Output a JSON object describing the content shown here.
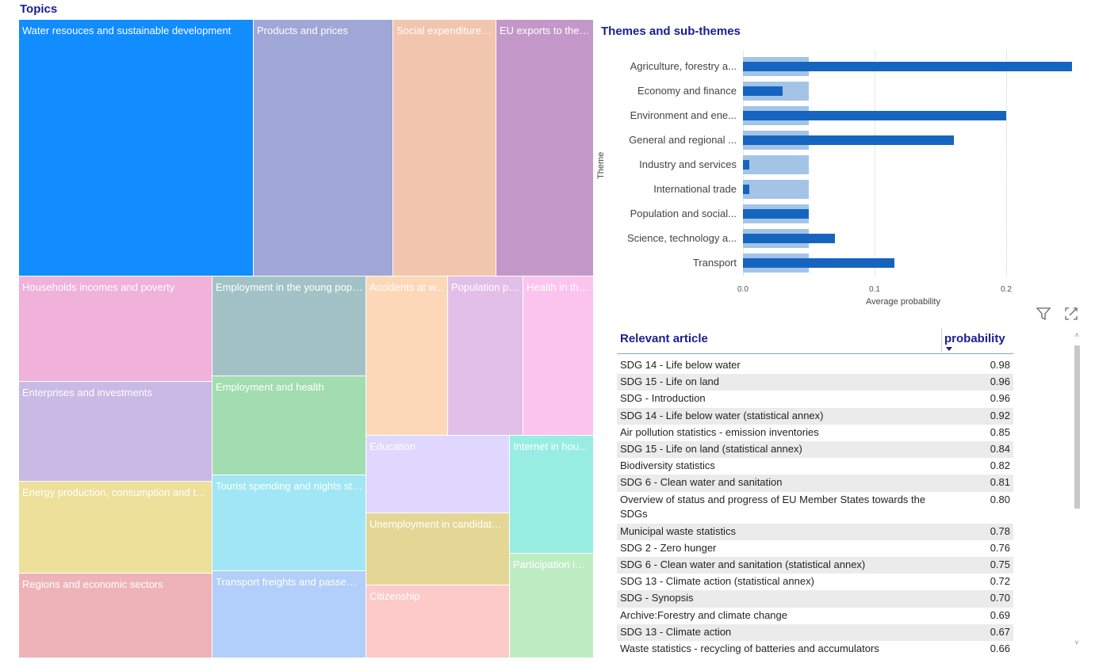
{
  "treemap": {
    "title": "Topics",
    "tiles": [
      {
        "label": "Water resouces and sustainable development",
        "color": "#118dff"
      },
      {
        "label": "Products and prices",
        "color": "#a0a7d7"
      },
      {
        "label": "Social expenditure ...",
        "color": "#f2c5ae"
      },
      {
        "label": "EU exports to the ...",
        "color": "#c398c8"
      },
      {
        "label": "Households incomes and poverty",
        "color": "#f0b2da"
      },
      {
        "label": "Employment in the young popu...",
        "color": "#a3c2c6"
      },
      {
        "label": "Accidents at w...",
        "color": "#fdd8b8"
      },
      {
        "label": "Population pr...",
        "color": "#e2bfe9"
      },
      {
        "label": "Health in the...",
        "color": "#fbc4ee"
      },
      {
        "label": "Enterprises and investments",
        "color": "#c8b9e5"
      },
      {
        "label": "Employment and health",
        "color": "#a2dcb1"
      },
      {
        "label": "Education",
        "color": "#dfd7fd"
      },
      {
        "label": "Internet in hou...",
        "color": "#98ede2"
      },
      {
        "label": "Energy production, consumption and th...",
        "color": "#ede09b"
      },
      {
        "label": "Tourist spending and nights stay",
        "color": "#a0e6f5"
      },
      {
        "label": "Unemployment in candidate ...",
        "color": "#e4d796"
      },
      {
        "label": "Participation in ...",
        "color": "#bfedc3"
      },
      {
        "label": "Regions and economic sectors",
        "color": "#eeb3b8"
      },
      {
        "label": "Transport freights and passeng...",
        "color": "#b2cefa"
      },
      {
        "label": "Citizenship",
        "color": "#fdc9c9"
      }
    ]
  },
  "themes": {
    "title": "Themes and sub-themes",
    "y_axis_label": "Theme",
    "x_axis_label": "Average probability"
  },
  "chart_data": {
    "type": "bar",
    "orientation": "horizontal",
    "title": "Themes and sub-themes",
    "ylabel": "Theme",
    "xlabel": "Average probability",
    "xlim": [
      0,
      0.25
    ],
    "x_ticks": [
      "0.0",
      "0.1",
      "0.2"
    ],
    "categories": [
      "Agriculture, forestry a...",
      "Economy and finance",
      "Environment and ene...",
      "General and regional ...",
      "Industry and services",
      "International trade",
      "Population and social...",
      "Science, technology a...",
      "Transport"
    ],
    "series": [
      {
        "values": [
          0.05,
          0.05,
          0.05,
          0.05,
          0.05,
          0.05,
          0.05,
          0.05,
          0.05
        ],
        "color": "#a3c4e6"
      },
      {
        "values": [
          0.25,
          0.03,
          0.2,
          0.16,
          0.005,
          0.005,
          0.05,
          0.07,
          0.115
        ],
        "color": "#1565c0"
      }
    ],
    "grid": true
  },
  "table": {
    "header_article": "Relevant article",
    "header_probability": "probability",
    "filter_icon": "filter-icon",
    "focus_icon": "focus-mode-icon",
    "rows": [
      {
        "article": "SDG 14 - Life below water",
        "p": "0.98"
      },
      {
        "article": "SDG 15 - Life on land",
        "p": "0.96"
      },
      {
        "article": "SDG - Introduction",
        "p": "0.96"
      },
      {
        "article": "SDG 14 - Life below water (statistical annex)",
        "p": "0.92"
      },
      {
        "article": "Air pollution statistics - emission inventories",
        "p": "0.85"
      },
      {
        "article": "SDG 15 - Life on land (statistical annex)",
        "p": "0.84"
      },
      {
        "article": "Biodiversity statistics",
        "p": "0.82"
      },
      {
        "article": "SDG 6 - Clean water and sanitation",
        "p": "0.81"
      },
      {
        "article": "Overview of status and progress of EU Member States towards the SDGs",
        "p": "0.80"
      },
      {
        "article": "Municipal waste statistics",
        "p": "0.78"
      },
      {
        "article": "SDG 2 - Zero hunger",
        "p": "0.76"
      },
      {
        "article": "SDG 6 - Clean water and sanitation (statistical annex)",
        "p": "0.75"
      },
      {
        "article": "SDG 13 - Climate action (statistical annex)",
        "p": "0.72"
      },
      {
        "article": "SDG - Synopsis",
        "p": "0.70"
      },
      {
        "article": "Archive:Forestry and climate change",
        "p": "0.69"
      },
      {
        "article": "SDG 13 - Climate action",
        "p": "0.67"
      },
      {
        "article": "Waste statistics - recycling of batteries and accumulators",
        "p": "0.66"
      }
    ]
  }
}
